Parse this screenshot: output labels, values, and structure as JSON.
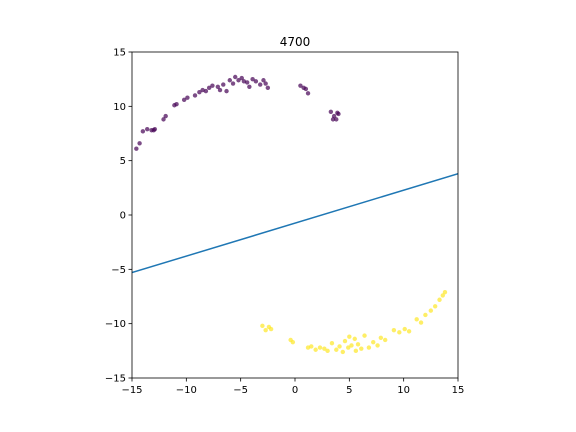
{
  "chart_data": {
    "type": "scatter",
    "title": "4700",
    "xlabel": "",
    "ylabel": "",
    "xlim": [
      -15,
      15
    ],
    "ylim": [
      -15,
      15
    ],
    "xticks": [
      -15,
      -10,
      -5,
      0,
      5,
      10,
      15
    ],
    "yticks": [
      -15,
      -10,
      -5,
      0,
      5,
      10,
      15
    ],
    "grid": false,
    "legend": "none",
    "colors": {
      "class0": "#440154",
      "class1": "#fde725",
      "line": "#1f77b4",
      "axes": "#000000"
    },
    "series": [
      {
        "color": "#440154",
        "x": [
          -14.6,
          -14.3,
          -14.0,
          -13.6,
          -13.2,
          -13.0,
          -12.9,
          -12.1,
          -11.9,
          -11.1,
          -10.9,
          -10.2,
          -9.9,
          -9.2,
          -8.8,
          -8.5,
          -8.2,
          -7.9,
          -7.6,
          -7.1,
          -6.9,
          -6.6,
          -6.3,
          -6.0,
          -5.7,
          -5.5,
          -5.2,
          -4.9,
          -4.7,
          -4.4,
          -4.2,
          -3.9,
          -3.6,
          -3.2,
          -2.9,
          -2.7,
          -2.5,
          0.5,
          0.8,
          1.0,
          1.2,
          3.3,
          3.6,
          3.8,
          4.0,
          3.5,
          3.9
        ],
        "y": [
          6.1,
          6.6,
          7.7,
          7.9,
          7.8,
          7.8,
          7.9,
          8.8,
          9.1,
          10.1,
          10.2,
          10.6,
          10.8,
          11.0,
          11.3,
          11.5,
          11.4,
          11.7,
          11.9,
          11.8,
          11.5,
          12.0,
          11.4,
          12.4,
          12.1,
          12.7,
          12.4,
          12.6,
          12.3,
          12.2,
          11.8,
          12.5,
          12.3,
          12.0,
          12.4,
          12.1,
          11.7,
          11.9,
          11.7,
          11.6,
          11.2,
          9.5,
          9.1,
          8.8,
          9.3,
          8.8,
          9.4
        ]
      },
      {
        "color": "#fde725",
        "x": [
          -3.0,
          -2.7,
          -2.4,
          -2.2,
          -0.4,
          -0.2,
          1.2,
          1.5,
          1.9,
          2.3,
          2.7,
          3.0,
          3.4,
          3.8,
          4.1,
          4.4,
          4.6,
          4.9,
          5.2,
          5.5,
          5.8,
          6.1,
          6.4,
          6.8,
          7.2,
          7.6,
          7.9,
          8.3,
          9.1,
          9.6,
          10.1,
          10.5,
          11.2,
          11.6,
          12.0,
          12.5,
          12.9,
          13.3,
          13.6,
          13.8,
          5.0,
          5.6
        ],
        "y": [
          -10.2,
          -10.6,
          -10.3,
          -10.5,
          -11.5,
          -11.7,
          -12.2,
          -12.1,
          -12.4,
          -12.2,
          -12.3,
          -12.5,
          -11.8,
          -12.4,
          -12.1,
          -12.6,
          -11.6,
          -12.2,
          -12.0,
          -11.4,
          -11.9,
          -12.3,
          -11.1,
          -12.2,
          -11.7,
          -12.0,
          -11.3,
          -11.5,
          -10.6,
          -10.8,
          -10.5,
          -10.7,
          -9.6,
          -9.9,
          -9.2,
          -8.8,
          -8.4,
          -7.8,
          -7.4,
          -7.1,
          -11.2,
          -12.5
        ]
      },
      {
        "type": "line",
        "color": "#1f77b4",
        "x": [
          -15,
          15
        ],
        "y": [
          -5.3,
          3.8
        ]
      }
    ]
  }
}
